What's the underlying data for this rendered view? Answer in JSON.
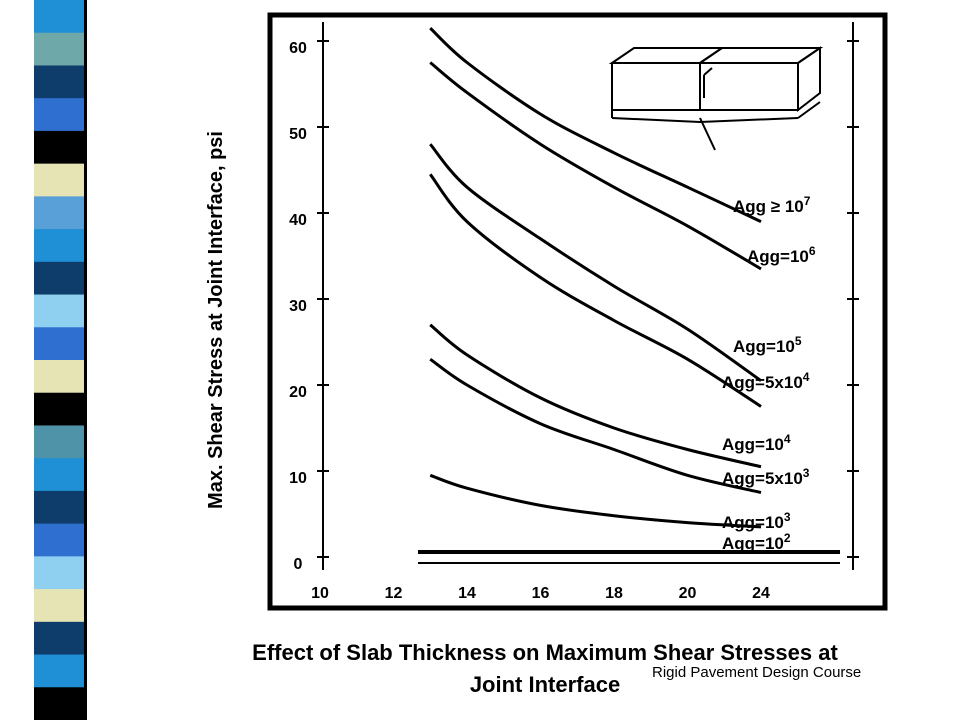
{
  "slide": {
    "caption_line1": "Effect of Slab Thickness on Maximum Shear Stresses at",
    "caption_line2": "Joint Interface",
    "footer": "Rigid Pavement Design Course",
    "stripe_colors": [
      "#1f8fd6",
      "#6fa8a8",
      "#0e3d6b",
      "#2f6fd0",
      "#000000",
      "#e6e3b4",
      "#5aa0d8",
      "#1f8fd6",
      "#0e3d6b",
      "#8fd0f0",
      "#2f6fd0",
      "#e6e3b4",
      "#000000",
      "#4f93a8",
      "#1f8fd6",
      "#0e3d6b",
      "#2f6fd0",
      "#8fd0f0",
      "#e6e3b4",
      "#0e3d6b",
      "#1f8fd6",
      "#000000"
    ]
  },
  "chart_data": {
    "type": "line",
    "ylabel": "Max. Shear Stress at Joint Interface, psi",
    "xlabel": "",
    "x_ticks": [
      10,
      12,
      14,
      16,
      18,
      20,
      24
    ],
    "y_ticks": [
      0,
      10,
      20,
      30,
      40,
      50,
      60
    ],
    "ylim": [
      0,
      62
    ],
    "grid": false,
    "series": [
      {
        "name": "Agg ≥ 10",
        "name_exp": "7",
        "x": [
          13,
          14,
          16,
          18,
          20,
          24
        ],
        "y": [
          61.5,
          57.5,
          51.5,
          47,
          43,
          39
        ]
      },
      {
        "name": "Agg=10",
        "name_exp": "6",
        "x": [
          13,
          14,
          16,
          18,
          20,
          24
        ],
        "y": [
          57.5,
          54,
          48,
          43,
          38.5,
          33.5
        ]
      },
      {
        "name": "Agg=10",
        "name_exp": "5",
        "x": [
          13,
          14,
          16,
          18,
          20,
          24
        ],
        "y": [
          48,
          43,
          37,
          31.5,
          26.5,
          20.5
        ]
      },
      {
        "name": "Agg=5x10",
        "name_exp": "4",
        "x": [
          13,
          14,
          16,
          18,
          20,
          24
        ],
        "y": [
          44.5,
          39,
          32.5,
          27.5,
          23,
          17.5
        ]
      },
      {
        "name": "Agg=10",
        "name_exp": "4",
        "x": [
          13,
          14,
          16,
          18,
          20,
          24
        ],
        "y": [
          27,
          23.5,
          18.5,
          15,
          12.5,
          10.5
        ]
      },
      {
        "name": "Agg=5x10",
        "name_exp": "3",
        "x": [
          13,
          14,
          16,
          18,
          20,
          24
        ],
        "y": [
          23,
          20,
          15.5,
          12.5,
          9.5,
          7.5
        ]
      },
      {
        "name": "Agg=10",
        "name_exp": "3",
        "x": [
          13,
          14,
          16,
          18,
          20,
          24
        ],
        "y": [
          9.5,
          8,
          6,
          4.8,
          4,
          3.5
        ]
      },
      {
        "name": "Agg=10",
        "name_exp": "2",
        "x": [
          13,
          24
        ],
        "y": [
          1,
          1
        ]
      }
    ]
  }
}
